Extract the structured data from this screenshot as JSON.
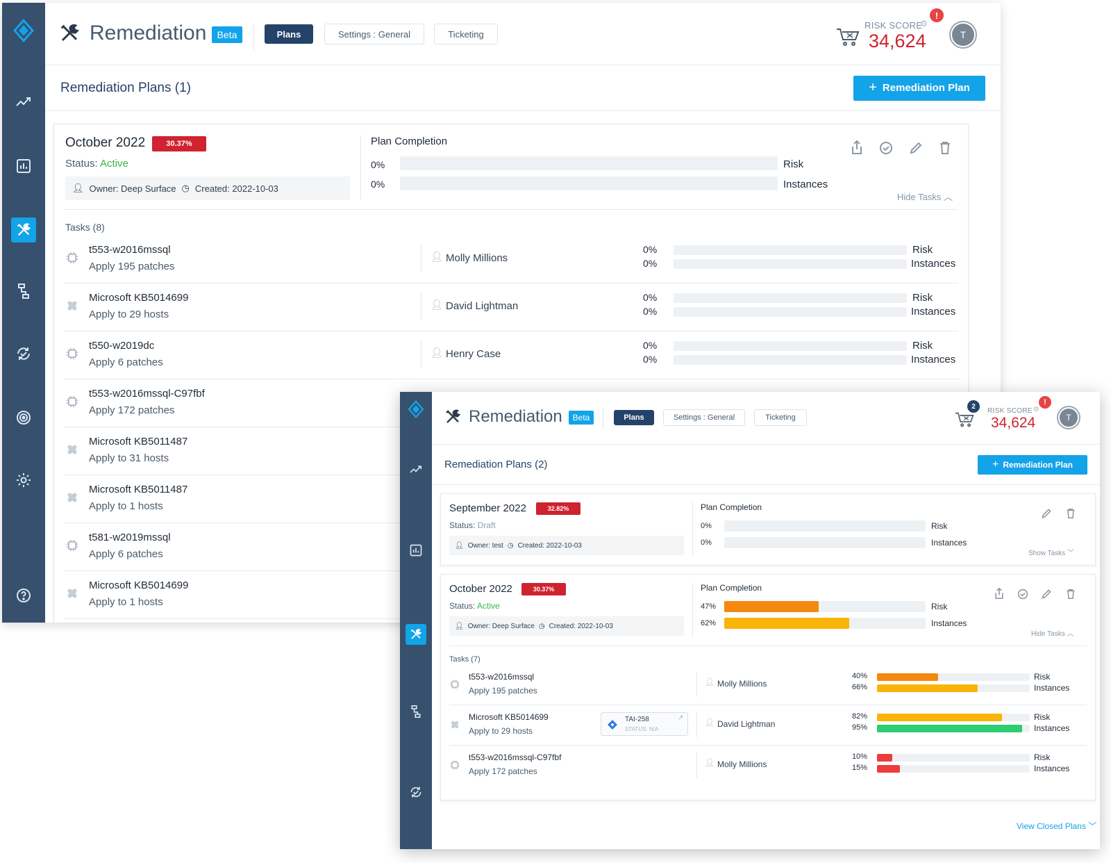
{
  "colors": {
    "sidebar": "#36506e",
    "accent": "#13a3e8",
    "risk_red": "#cf2330",
    "orange": "#f5890f",
    "amber": "#f9b40a",
    "green": "#2fcc72",
    "red": "#ef3b3b",
    "active_green": "#3ab54a"
  },
  "w1": {
    "app_title": "Remediation",
    "beta": "Beta",
    "tabs": [
      "Plans",
      "Settings : General",
      "Ticketing"
    ],
    "risk_label": "RISK SCORE",
    "risk_value": "34,624",
    "alert": "!",
    "avatar": "T",
    "header": "Remediation Plans (1)",
    "new_plan": "Remediation Plan",
    "plan": {
      "name": "October 2022",
      "pct": "30.37%",
      "status_label": "Status:",
      "status": "Active",
      "owner_label": "Owner:",
      "owner": "Deep Surface",
      "created_label": "Created:",
      "created": "2022-10-03",
      "completion": "Plan Completion",
      "risk_pct": "0%",
      "risk_fill": 0,
      "risk": "Risk",
      "inst_pct": "0%",
      "inst_fill": 0,
      "inst": "Instances",
      "toggle": "Hide Tasks",
      "tasks_header": "Tasks (8)"
    },
    "tasks": [
      {
        "icon": "chip-icon",
        "title": "t553-w2016mssql",
        "sub": "Apply 195 patches",
        "owner": "Molly Millions",
        "rp": "0%",
        "ip": "0%",
        "r": "Risk",
        "i": "Instances"
      },
      {
        "icon": "patch-icon",
        "title": "Microsoft KB5014699",
        "sub": "Apply to 29 hosts",
        "owner": "David Lightman",
        "rp": "0%",
        "ip": "0%",
        "r": "Risk",
        "i": "Instances"
      },
      {
        "icon": "chip-icon",
        "title": "t550-w2019dc",
        "sub": "Apply 6 patches",
        "owner": "Henry Case",
        "rp": "0%",
        "ip": "0%",
        "r": "Risk",
        "i": "Instances"
      },
      {
        "icon": "chip-icon",
        "title": "t553-w2016mssql-C97fbf",
        "sub": "Apply 172 patches"
      },
      {
        "icon": "patch-icon",
        "title": "Microsoft KB5011487",
        "sub": "Apply to 31 hosts"
      },
      {
        "icon": "patch-icon",
        "title": "Microsoft KB5011487",
        "sub": "Apply to 1 hosts"
      },
      {
        "icon": "chip-icon",
        "title": "t581-w2019mssql",
        "sub": "Apply 6 patches"
      },
      {
        "icon": "patch-icon",
        "title": "Microsoft KB5014699",
        "sub": "Apply to 1 hosts"
      }
    ]
  },
  "w2": {
    "app_title": "Remediation",
    "beta": "Beta",
    "tabs": [
      "Plans",
      "Settings : General",
      "Ticketing"
    ],
    "cart_count": "2",
    "risk_label": "RISK SCORE",
    "risk_value": "34,624",
    "alert": "!",
    "avatar": "T",
    "header": "Remediation Plans (2)",
    "new_plan": "Remediation Plan",
    "plan1": {
      "name": "September 2022",
      "pct": "32.82%",
      "status_label": "Status:",
      "status": "Draft",
      "owner_label": "Owner:",
      "owner": "test",
      "created_label": "Created:",
      "created": "2022-10-03",
      "completion": "Plan Completion",
      "risk_pct": "0%",
      "risk": "Risk",
      "inst_pct": "0%",
      "inst": "Instances",
      "toggle": "Show Tasks"
    },
    "plan2": {
      "name": "October 2022",
      "pct": "30.37%",
      "status_label": "Status:",
      "status": "Active",
      "owner_label": "Owner:",
      "owner": "Deep Surface",
      "created_label": "Created:",
      "created": "2022-10-03",
      "completion": "Plan Completion",
      "risk_pct": "47%",
      "risk_fill": 0.47,
      "risk": "Risk",
      "inst_pct": "62%",
      "inst_fill": 0.62,
      "inst": "Instances",
      "toggle": "Hide Tasks",
      "tasks_header": "Tasks (7)"
    },
    "tasks": [
      {
        "icon": "chip-icon",
        "title": "t553-w2016mssql",
        "sub": "Apply 195 patches",
        "owner": "Molly Millions",
        "rp": "40%",
        "rf": 0.4,
        "rc": "#f5890f",
        "ip": "66%",
        "if": 0.66,
        "ic": "#f9b40a",
        "r": "Risk",
        "i": "Instances"
      },
      {
        "icon": "patch-icon",
        "title": "Microsoft KB5014699",
        "sub": "Apply to 29 hosts",
        "ticket": "TAI-258",
        "ticket_status": "STATUS: N/A",
        "owner": "David Lightman",
        "rp": "82%",
        "rf": 0.82,
        "rc": "#f9b40a",
        "ip": "95%",
        "if": 0.95,
        "ic": "#2fcc72",
        "r": "Risk",
        "i": "Instances"
      },
      {
        "icon": "chip-icon",
        "title": "t553-w2016mssql-C97fbf",
        "sub": "Apply 172 patches",
        "owner": "Molly Millions",
        "rp": "10%",
        "rf": 0.1,
        "rc": "#ef3b3b",
        "ip": "15%",
        "if": 0.15,
        "ic": "#ef3b3b",
        "r": "Risk",
        "i": "Instances"
      }
    ],
    "view_closed": "View Closed Plans"
  }
}
